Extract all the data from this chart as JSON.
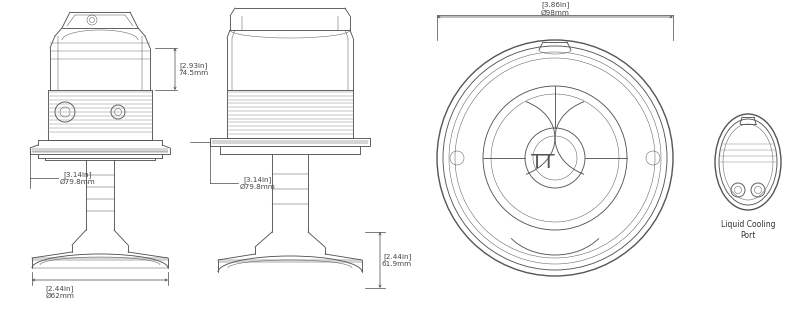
{
  "background_color": "#ffffff",
  "line_color": "#555555",
  "dim_color": "#444444",
  "text_color": "#333333",
  "fig_width": 7.98,
  "fig_height": 3.19,
  "dpi": 100,
  "dims": {
    "d1_label": "[2.93in]\n74.5mm",
    "d2_label": "[3.14in]\nØ79.8mm",
    "d3_label": "[2.44in]\nØ62mm",
    "d4_label": "[2.44in]\n61.9mm",
    "d5_label": "[3.86in]\nØ98mm"
  },
  "cooling_label": "Liquid Cooling\nPort",
  "lw_main": 0.65,
  "lw_thick": 1.0,
  "lw_thin": 0.35,
  "lw_dim": 0.5,
  "fs_dim": 5.2,
  "fs_label": 5.5
}
